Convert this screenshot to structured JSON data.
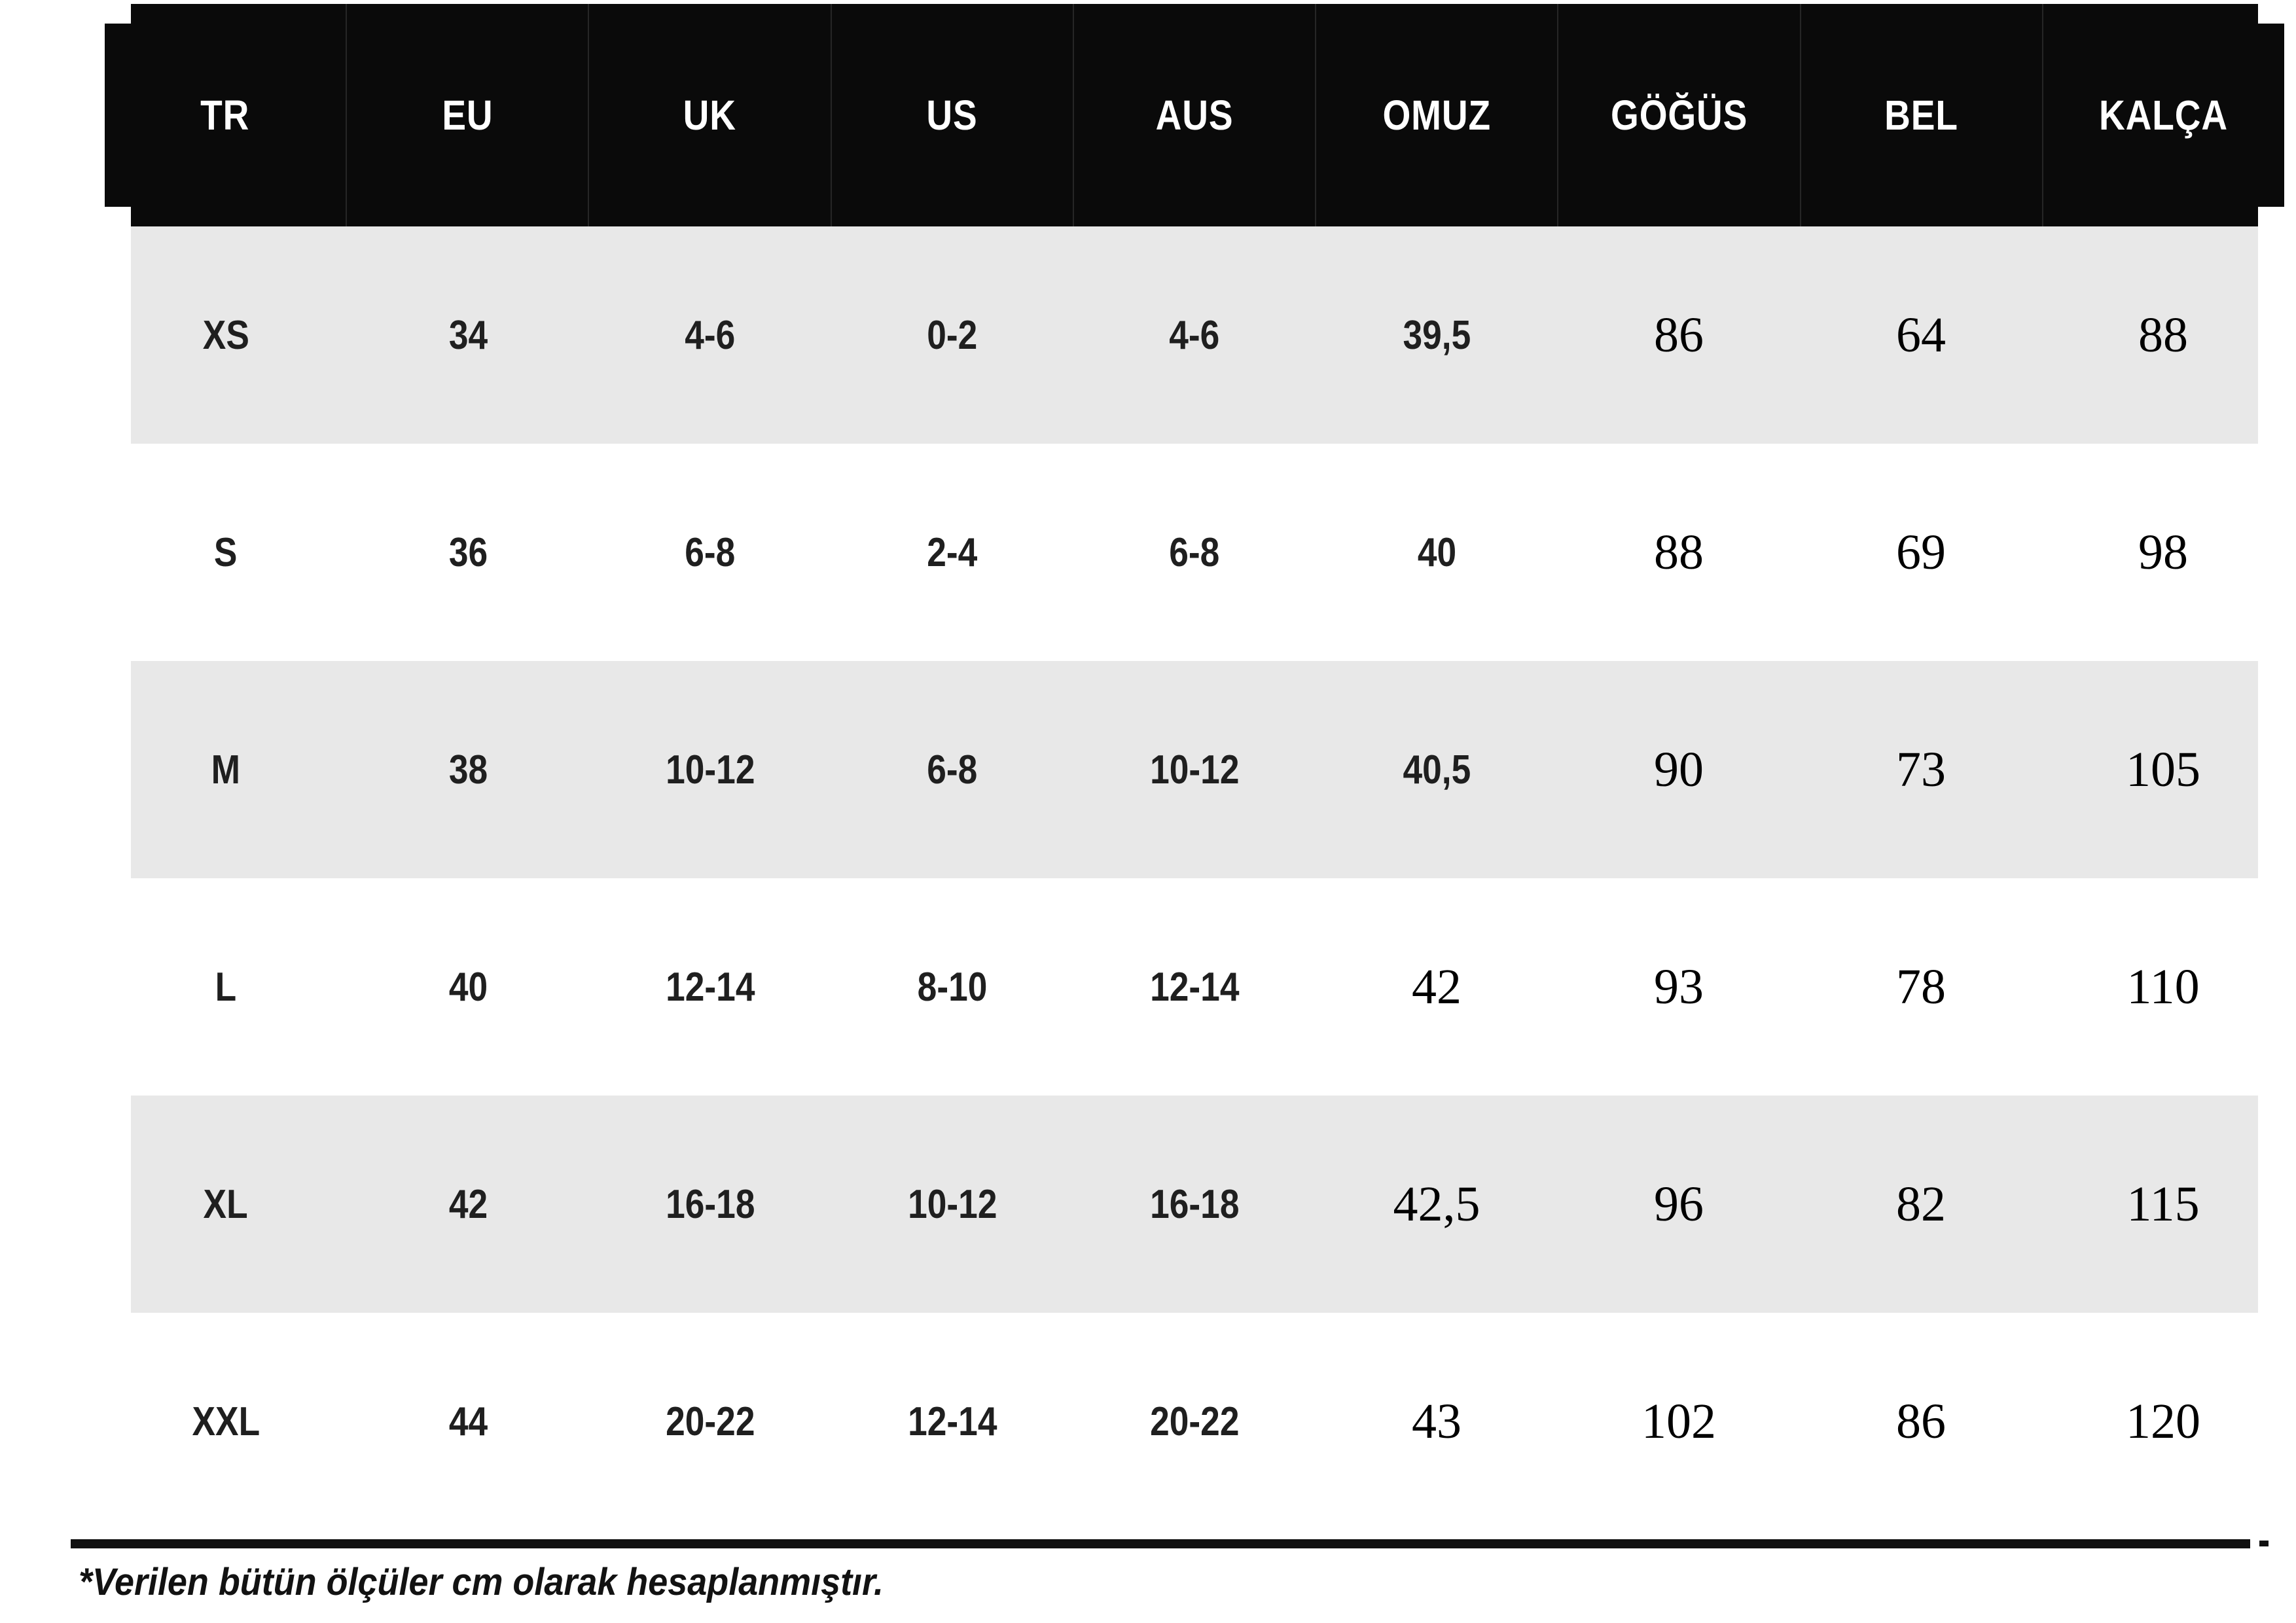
{
  "colors": {
    "header_bg": "#0a0a0a",
    "header_text": "#ffffff",
    "row_shaded": "#e8e8e8",
    "row_plain": "#ffffff",
    "text": "#1f1f1f",
    "rule": "#101010"
  },
  "table": {
    "columns": [
      "TR",
      "EU",
      "UK",
      "US",
      "AUS",
      "OMUZ",
      "GÖĞÜS",
      "BEL",
      "KALÇA"
    ],
    "rows": [
      {
        "cells": [
          "XS",
          "34",
          "4-6",
          "0-2",
          "4-6",
          "39,5",
          "86",
          "64",
          "88"
        ],
        "shaded": true,
        "serif_start_index": 6
      },
      {
        "cells": [
          "S",
          "36",
          "6-8",
          "2-4",
          "6-8",
          "40",
          "88",
          "69",
          "98"
        ],
        "shaded": false,
        "serif_start_index": 6
      },
      {
        "cells": [
          "M",
          "38",
          "10-12",
          "6-8",
          "10-12",
          "40,5",
          "90",
          "73",
          "105"
        ],
        "shaded": true,
        "serif_start_index": 6
      },
      {
        "cells": [
          "L",
          "40",
          "12-14",
          "8-10",
          "12-14",
          "42",
          "93",
          "78",
          "110"
        ],
        "shaded": false,
        "serif_start_index": 5
      },
      {
        "cells": [
          "XL",
          "42",
          "16-18",
          "10-12",
          "16-18",
          "42,5",
          "96",
          "82",
          "115"
        ],
        "shaded": true,
        "serif_start_index": 5
      },
      {
        "cells": [
          "XXL",
          "44",
          "20-22",
          "12-14",
          "20-22",
          "43",
          "102",
          "86",
          "120"
        ],
        "shaded": false,
        "serif_start_index": 5
      }
    ]
  },
  "footnote": "*Verilen bütün ölçüler cm olarak hesaplanmıştır.",
  "chart_data": {
    "type": "table",
    "title": "",
    "columns": [
      "TR",
      "EU",
      "UK",
      "US",
      "AUS",
      "OMUZ",
      "GÖĞÜS",
      "BEL",
      "KALÇA"
    ],
    "rows": [
      [
        "XS",
        "34",
        "4-6",
        "0-2",
        "4-6",
        "39,5",
        "86",
        "64",
        "88"
      ],
      [
        "S",
        "36",
        "6-8",
        "2-4",
        "6-8",
        "40",
        "88",
        "69",
        "98"
      ],
      [
        "M",
        "38",
        "10-12",
        "6-8",
        "10-12",
        "40,5",
        "90",
        "73",
        "105"
      ],
      [
        "L",
        "40",
        "12-14",
        "8-10",
        "12-14",
        "42",
        "93",
        "78",
        "110"
      ],
      [
        "XL",
        "42",
        "16-18",
        "10-12",
        "16-18",
        "42,5",
        "96",
        "82",
        "115"
      ],
      [
        "XXL",
        "44",
        "20-22",
        "12-14",
        "20-22",
        "43",
        "102",
        "86",
        "120"
      ]
    ]
  }
}
